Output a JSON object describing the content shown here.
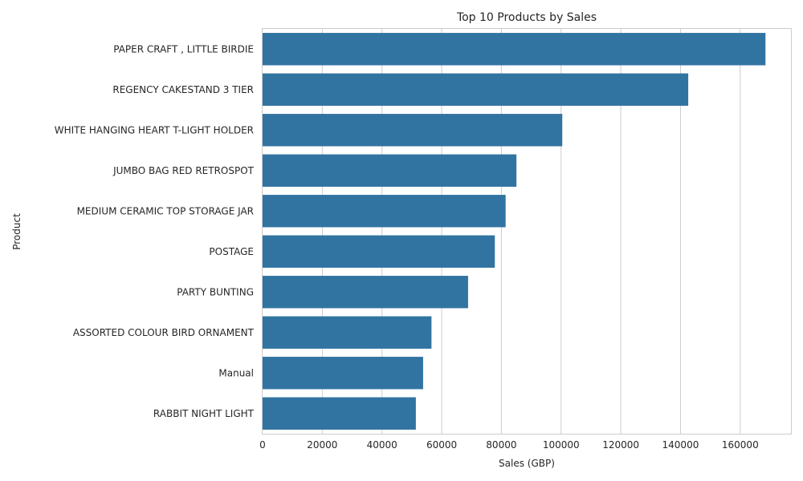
{
  "chart_data": {
    "type": "bar",
    "orientation": "horizontal",
    "title": "Top 10 Products by Sales",
    "xlabel": "Sales (GBP)",
    "ylabel": "Product",
    "categories": [
      "PAPER CRAFT , LITTLE BIRDIE",
      "REGENCY CAKESTAND 3 TIER",
      "WHITE HANGING HEART T-LIGHT HOLDER",
      "JUMBO BAG RED RETROSPOT",
      "MEDIUM CERAMIC TOP STORAGE JAR",
      "POSTAGE",
      "PARTY BUNTING",
      "ASSORTED COLOUR BIRD ORNAMENT",
      "Manual",
      "RABBIT NIGHT LIGHT"
    ],
    "values": [
      168470,
      142593,
      100392,
      85040,
      81417,
      77804,
      68844,
      56580,
      53780,
      51346
    ],
    "xlim": [
      0,
      177000
    ],
    "xticks": [
      0,
      20000,
      40000,
      60000,
      80000,
      100000,
      120000,
      140000,
      160000
    ],
    "grid": "vertical",
    "bar_color": "#3274a1"
  }
}
